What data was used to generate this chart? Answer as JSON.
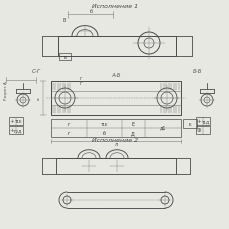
{
  "bg_color": "#e8e8e2",
  "line_color": "#4a4a4a",
  "thin_color": "#7a7a7a",
  "center_color": "#888888",
  "title1": "Исполнение 1",
  "title2": "Исполнение 2",
  "label_cg": "С-Г",
  "label_ab": "А-Б",
  "label_bb": "Б-Б"
}
